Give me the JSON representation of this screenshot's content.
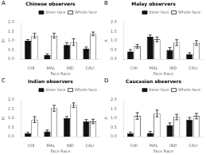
{
  "chart_data": [
    {
      "type": "bar",
      "title": "Chinese observers",
      "annotations": [
        "A"
      ],
      "x_label": "Face Race",
      "y_label": "Pr",
      "categories": [
        "CHI",
        "MAL",
        "IND",
        "CAU"
      ],
      "series": [
        {
          "name": "Inner face",
          "color": "#111111",
          "values": [
            1.0,
            0.22,
            0.78,
            0.58
          ],
          "errors": [
            0.07,
            0.06,
            0.12,
            0.08
          ]
        },
        {
          "name": "Whole face",
          "color": "#ffffff",
          "values": [
            1.28,
            1.28,
            0.93,
            1.38
          ],
          "errors": [
            0.13,
            0.13,
            0.18,
            0.1
          ]
        }
      ],
      "ylim": [
        0.0,
        2.0
      ],
      "yticks": [
        {
          "value": 0.0,
          "label": "0.0"
        },
        0.5,
        {
          "value": 1.0,
          "label": "1.0"
        },
        1.5,
        {
          "value": 2.0,
          "label": "2.0"
        }
      ],
      "grid": false,
      "legend": "upper right"
    },
    {
      "type": "bar",
      "title": "Malay observers",
      "annotations": [
        "B"
      ],
      "x_label": "Face Race",
      "y_label": "A",
      "categories": [
        "CHI",
        "MAL",
        "IND",
        "CAU"
      ],
      "series": [
        {
          "name": "Inner face",
          "color": "#111111",
          "values": [
            0.42,
            1.22,
            0.5,
            0.27
          ],
          "errors": [
            0.1,
            0.1,
            0.13,
            0.08
          ]
        },
        {
          "name": "Whole face",
          "color": "#ffffff",
          "values": [
            0.7,
            1.08,
            0.9,
            0.88
          ],
          "errors": [
            0.1,
            0.13,
            0.16,
            0.13
          ]
        }
      ],
      "ylim": [
        0.0,
        2.0
      ],
      "yticks": [
        {
          "value": 0.0,
          "label": "0.0"
        },
        0.5,
        {
          "value": 1.0,
          "label": "1.0"
        },
        1.5,
        {
          "value": 2.0,
          "label": "2.0"
        }
      ],
      "grid": false,
      "legend": "upper right"
    },
    {
      "type": "bar",
      "title": "Indian observers",
      "annotations": [
        "C"
      ],
      "x_label": "Face Race",
      "y_label": "Pr",
      "categories": [
        "CHI",
        "MAL",
        "IND",
        "CAU"
      ],
      "series": [
        {
          "name": "Inner face",
          "color": "#111111",
          "values": [
            0.17,
            0.28,
            1.0,
            0.83
          ],
          "errors": [
            0.06,
            0.08,
            0.1,
            0.1
          ]
        },
        {
          "name": "Whole face",
          "color": "#ffffff",
          "values": [
            0.93,
            1.55,
            1.72,
            0.83
          ],
          "errors": [
            0.16,
            0.16,
            0.12,
            0.12
          ]
        }
      ],
      "ylim": [
        0.0,
        2.0
      ],
      "yticks": [
        {
          "value": 0.0,
          "label": "0.0"
        },
        0.5,
        {
          "value": 1.0,
          "label": "1.0"
        },
        1.5,
        {
          "value": 2.0,
          "label": "2.0"
        }
      ],
      "grid": false,
      "legend": "upper right"
    },
    {
      "type": "bar",
      "title": "Caucasian observers",
      "annotations": [
        "D"
      ],
      "x_label": "Face Race",
      "y_label": "A",
      "categories": [
        "CHI",
        "MAL",
        "IND",
        "CAU"
      ],
      "series": [
        {
          "name": "Inner face",
          "color": "#111111",
          "values": [
            0.17,
            0.2,
            0.63,
            0.93
          ],
          "errors": [
            0.08,
            0.08,
            0.12,
            0.12
          ]
        },
        {
          "name": "Whole face",
          "color": "#ffffff",
          "values": [
            1.13,
            1.27,
            1.07,
            1.12
          ],
          "errors": [
            0.18,
            0.18,
            0.15,
            0.15
          ]
        }
      ],
      "ylim": [
        0.0,
        2.0
      ],
      "yticks": [
        {
          "value": 0.0,
          "label": "0.0"
        },
        0.5,
        {
          "value": 1.0,
          "label": "1.0"
        },
        1.5,
        {
          "value": 2.0,
          "label": "2.0"
        }
      ],
      "grid": false,
      "legend": "upper right"
    }
  ]
}
